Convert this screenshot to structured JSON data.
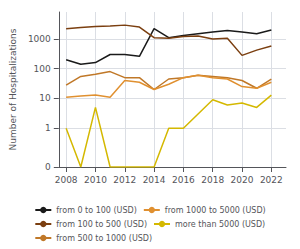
{
  "chart_data": {
    "type": "line",
    "x": [
      2008,
      2009,
      2010,
      2011,
      2012,
      2013,
      2014,
      2015,
      2016,
      2017,
      2018,
      2019,
      2020,
      2021,
      2022
    ],
    "series": [
      {
        "name": "from 0 to 100 (USD)",
        "color": "#1a1a1a",
        "values": [
          200,
          140,
          160,
          300,
          300,
          260,
          2200,
          1100,
          1300,
          1500,
          1700,
          1900,
          1700,
          1500,
          2000
        ]
      },
      {
        "name": "from 100 to 500 (USD)",
        "color": "#7B3F10",
        "values": [
          2200,
          2400,
          2600,
          2700,
          2900,
          2500,
          1100,
          1050,
          1200,
          1250,
          1000,
          1050,
          280,
          420,
          580
        ]
      },
      {
        "name": "from 500 to 1000 (USD)",
        "color": "#C07828",
        "values": [
          28,
          55,
          65,
          80,
          50,
          50,
          20,
          45,
          50,
          60,
          55,
          50,
          40,
          22,
          45
        ]
      },
      {
        "name": "from 1000 to 5000 (USD)",
        "color": "#E09030",
        "values": [
          11,
          12,
          13,
          11,
          40,
          35,
          20,
          30,
          50,
          60,
          50,
          45,
          25,
          22,
          35
        ]
      },
      {
        "name": "more than 5000 (USD)",
        "color": "#D4B800",
        "values": [
          1,
          0.05,
          5,
          0.05,
          0.05,
          0.05,
          0.05,
          1,
          1,
          3,
          9,
          6,
          7,
          5,
          13
        ]
      }
    ],
    "legend_order": [
      "from 0 to 100 (USD)",
      "from 1000 to 5000 (USD)",
      "from 100 to 500 (USD)",
      "more than 5000 (USD)",
      "from 500 to 1000 (USD)"
    ],
    "ylabel": "Number of Hospitalizations",
    "xlim": [
      2007.5,
      2023.0
    ],
    "xticks": [
      2008,
      2010,
      2012,
      2014,
      2016,
      2018,
      2020,
      2022
    ],
    "ylim": [
      0.05,
      8000
    ],
    "yticks": [
      {
        "value": 0.05,
        "label": "0"
      },
      1,
      10,
      100,
      1000
    ],
    "log": "y",
    "grid": true,
    "legend": "bottom"
  }
}
